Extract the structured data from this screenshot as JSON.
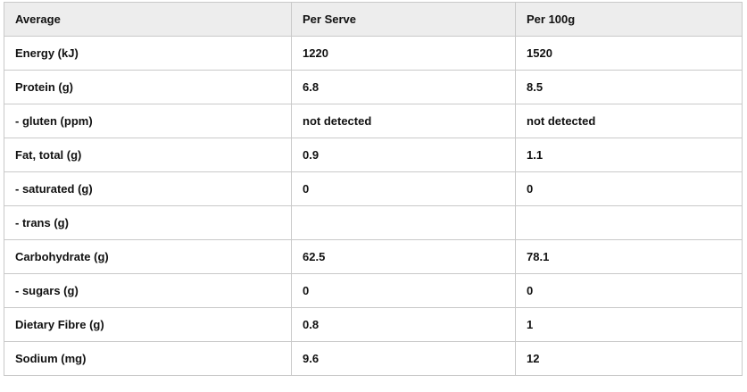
{
  "table": {
    "headers": [
      "Average",
      "Per Serve",
      "Per 100g"
    ],
    "rows": [
      [
        "Energy (kJ)",
        "1220",
        "1520"
      ],
      [
        "Protein (g)",
        "6.8",
        "8.5"
      ],
      [
        "- gluten (ppm)",
        "not detected",
        "not detected"
      ],
      [
        "Fat, total (g)",
        "0.9",
        "1.1"
      ],
      [
        "- saturated (g)",
        "0",
        "0"
      ],
      [
        "- trans (g)",
        "",
        ""
      ],
      [
        "Carbohydrate (g)",
        "62.5",
        "78.1"
      ],
      [
        "- sugars (g)",
        "0",
        "0"
      ],
      [
        "Dietary Fibre (g)",
        "0.8",
        "1"
      ],
      [
        "Sodium (mg)",
        "9.6",
        "12"
      ]
    ]
  },
  "colors": {
    "header_background": "#ededed",
    "border": "#c9c9c9",
    "text": "#111111"
  }
}
